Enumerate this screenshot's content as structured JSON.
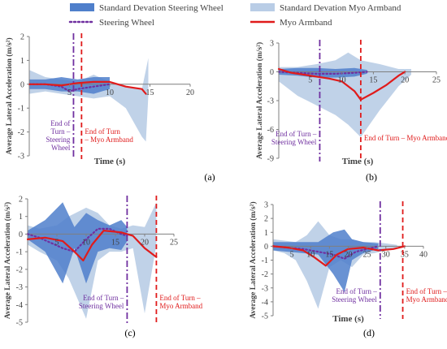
{
  "legend": {
    "items": [
      {
        "label": "Standard Devation Steering Wheel",
        "kind": "area",
        "color": "#4f7fcb"
      },
      {
        "label": "Standard Devation Myo Armband",
        "kind": "area",
        "color": "#b9cde6"
      },
      {
        "label": "Steering Wheel",
        "kind": "dotted-line",
        "color": "#7030a0"
      },
      {
        "label": "Myo Armband",
        "kind": "line",
        "color": "#e01b1b"
      }
    ]
  },
  "colors": {
    "sd_steering": "#4f7fcb",
    "sd_myo": "#b9cde6",
    "steering": "#7030a0",
    "myo": "#e01b1b",
    "axis": "#7f7f7f",
    "text": "#404040"
  },
  "chart_data": [
    {
      "type": "line",
      "panel_label": "(a)",
      "xlabel": "Time (s)",
      "ylabel": "Average Lateral Acceleration (m/s²)",
      "xlim": [
        0,
        20
      ],
      "ylim": [
        -3,
        2
      ],
      "xticks": [
        5,
        10,
        15,
        20
      ],
      "yticks": [
        2,
        1,
        0,
        -1,
        -2,
        -3
      ],
      "xtick_labels": [
        "5",
        "10",
        "15",
        "20"
      ],
      "ytick_labels": [
        "2",
        "1",
        "0",
        "-1",
        "-2",
        "-3"
      ],
      "series": [
        {
          "name": "Standard Devation Myo Armband",
          "kind": "band",
          "x": [
            0,
            2,
            4,
            6,
            8,
            10,
            12,
            14,
            14.5,
            14.8
          ],
          "upper": [
            0.6,
            0.3,
            0.2,
            0.1,
            0.4,
            0.1,
            -0.1,
            -0.2,
            0.6,
            1.1
          ],
          "lower": [
            -0.4,
            -0.3,
            -0.4,
            -0.5,
            -0.6,
            -0.5,
            -1.0,
            -2.2,
            -2.4,
            -0.5
          ]
        },
        {
          "name": "Standard Devation Steering Wheel",
          "kind": "band",
          "x": [
            0,
            2,
            4,
            6,
            8,
            10
          ],
          "upper": [
            0.2,
            0.2,
            0.3,
            0.2,
            0.3,
            0.3
          ],
          "lower": [
            -0.2,
            -0.2,
            -0.3,
            -0.3,
            -0.4,
            -0.2
          ]
        },
        {
          "name": "Steering Wheel",
          "kind": "dotted",
          "x": [
            0,
            2,
            4,
            5,
            6,
            8,
            10
          ],
          "y": [
            0.0,
            0.0,
            -0.1,
            -0.3,
            -0.2,
            -0.1,
            0.0
          ]
        },
        {
          "name": "Myo Armband",
          "kind": "line",
          "x": [
            0,
            2,
            4,
            6,
            8,
            10,
            12,
            14,
            14.5
          ],
          "y": [
            0.0,
            0.0,
            -0.05,
            0.05,
            0.1,
            0.1,
            -0.1,
            -0.2,
            -0.4
          ]
        }
      ],
      "markers": [
        {
          "x": 5.5,
          "color": "#7030a0",
          "style": "dashdot",
          "label": "End of Turn – Steering Wheel",
          "side": "left"
        },
        {
          "x": 6.5,
          "color": "#e01b1b",
          "style": "dashed",
          "label": "End of Turn – Myo Armband",
          "side": "right"
        }
      ]
    },
    {
      "type": "line",
      "panel_label": "(b)",
      "xlabel": "Time (s)",
      "ylabel": "Average Lateral Acceleration (m/s²)",
      "xlim": [
        0,
        25
      ],
      "ylim": [
        -9,
        3
      ],
      "xticks": [
        5,
        10,
        15,
        20,
        25
      ],
      "yticks": [
        3,
        0,
        -3,
        -6,
        -9
      ],
      "xtick_labels": [
        "5",
        "10",
        "15",
        "20",
        "25"
      ],
      "ytick_labels": [
        "3",
        "0",
        "-3",
        "-6",
        "-9"
      ],
      "series": [
        {
          "name": "Standard Devation Myo Armband",
          "kind": "band",
          "x": [
            0,
            3,
            6,
            9,
            11,
            13,
            16,
            19,
            21
          ],
          "upper": [
            0.5,
            0.5,
            0.8,
            1.2,
            2.0,
            1.2,
            0.8,
            0.3,
            0.3
          ],
          "lower": [
            -1.0,
            -2.5,
            -3.5,
            -4.5,
            -5.5,
            -6.8,
            -4.0,
            -1.5,
            -0.3
          ]
        },
        {
          "name": "Standard Devation Steering Wheel",
          "kind": "band",
          "x": [
            0,
            3,
            6,
            9,
            12,
            14
          ],
          "upper": [
            0.3,
            0.4,
            0.4,
            0.3,
            0.4,
            0.2
          ],
          "lower": [
            -0.3,
            -0.4,
            -0.6,
            -0.6,
            -0.5,
            -0.2
          ]
        },
        {
          "name": "Steering Wheel",
          "kind": "dotted",
          "x": [
            0,
            3,
            6,
            9,
            12,
            14
          ],
          "y": [
            0.0,
            -0.1,
            -0.2,
            -0.2,
            -0.1,
            0.0
          ]
        },
        {
          "name": "Myo Armband",
          "kind": "line",
          "x": [
            0,
            2,
            4,
            6,
            8,
            10,
            12,
            13,
            15,
            17,
            19,
            20
          ],
          "y": [
            0.3,
            -0.1,
            -0.3,
            -0.5,
            -0.7,
            -1.0,
            -2.0,
            -2.9,
            -2.2,
            -1.4,
            -0.4,
            0.0
          ]
        }
      ],
      "markers": [
        {
          "x": 6.5,
          "color": "#7030a0",
          "style": "dashdot",
          "label": "End of Turn – Steering Wheel",
          "side": "left"
        },
        {
          "x": 13.0,
          "color": "#e01b1b",
          "style": "dashed",
          "label": "End of Turn – Myo Armband",
          "side": "right"
        }
      ]
    },
    {
      "type": "line",
      "panel_label": "(c)",
      "xlabel": "",
      "ylabel": "Average Lateral Acceleration (m/s²)",
      "xlim": [
        0,
        25
      ],
      "ylim": [
        -5,
        2
      ],
      "xticks": [
        5,
        10,
        15,
        20,
        25
      ],
      "yticks": [
        2,
        1,
        0,
        -1,
        -2,
        -3,
        -4,
        -5
      ],
      "xtick_labels": [
        "5",
        "10",
        "15",
        "20",
        "25"
      ],
      "ytick_labels": [
        "2",
        "1",
        "0",
        "-1",
        "-2",
        "-3",
        "-4",
        "-5"
      ],
      "series": [
        {
          "name": "Standard Devation Myo Armband",
          "kind": "band",
          "x": [
            0,
            2,
            5,
            7,
            10,
            12,
            14,
            16,
            18,
            20,
            22
          ],
          "upper": [
            0.5,
            0.3,
            0.5,
            1.0,
            1.5,
            1.2,
            0.5,
            0.3,
            0.5,
            0.4,
            1.8
          ],
          "lower": [
            -0.6,
            -1.0,
            -1.5,
            -2.5,
            -4.8,
            -1.5,
            -1.0,
            -1.0,
            -0.8,
            -4.5,
            -0.6
          ]
        },
        {
          "name": "Standard Devation Steering Wheel",
          "kind": "band",
          "x": [
            0,
            3,
            6,
            8,
            10,
            12,
            14,
            16,
            17
          ],
          "upper": [
            0.2,
            0.8,
            1.8,
            0.4,
            1.2,
            0.8,
            0.5,
            0.8,
            0.4
          ],
          "lower": [
            -0.3,
            -1.0,
            -2.8,
            -0.8,
            -2.8,
            -1.0,
            -0.8,
            -0.9,
            -0.4
          ]
        },
        {
          "name": "Steering Wheel",
          "kind": "dotted",
          "x": [
            0,
            2,
            4,
            6,
            8,
            10,
            12,
            14,
            16,
            17
          ],
          "y": [
            0.0,
            -0.2,
            -0.5,
            -0.8,
            -1.0,
            -0.3,
            0.3,
            0.3,
            0.0,
            -0.1
          ]
        },
        {
          "name": "Myo Armband",
          "kind": "line",
          "x": [
            0,
            3,
            6,
            8,
            9.5,
            11,
            13,
            16,
            18,
            20,
            22
          ],
          "y": [
            -0.3,
            -0.2,
            -0.4,
            -1.0,
            -1.5,
            -0.6,
            0.2,
            0.1,
            -0.1,
            -0.8,
            -1.3
          ]
        }
      ],
      "markers": [
        {
          "x": 17.0,
          "color": "#7030a0",
          "style": "dashdot",
          "label": "End of Turn – Steering Wheel",
          "side": "left"
        },
        {
          "x": 22.0,
          "color": "#e01b1b",
          "style": "dashed",
          "label": "End of Turn – Myo Armband",
          "side": "right"
        }
      ]
    },
    {
      "type": "line",
      "panel_label": "(d)",
      "xlabel": "Time (s)",
      "ylabel": "Average Lateral Acceleration (m/s²)",
      "xlim": [
        0,
        40
      ],
      "ylim": [
        -5,
        3
      ],
      "xticks": [
        5,
        10,
        15,
        20,
        25,
        30,
        35,
        40
      ],
      "yticks": [
        3,
        2,
        1,
        0,
        -1,
        -2,
        -3,
        -4,
        -5
      ],
      "xtick_labels": [
        "5",
        "10",
        "15",
        "20",
        "25",
        "30",
        "35",
        "40"
      ],
      "ytick_labels": [
        "3",
        "2",
        "1",
        "0",
        "-1",
        "-2",
        "-3",
        "-4",
        "-5"
      ],
      "series": [
        {
          "name": "Standard Devation Myo Armband",
          "kind": "band",
          "x": [
            0,
            3,
            6,
            9,
            12,
            15,
            18,
            21,
            24,
            27,
            30,
            33
          ],
          "upper": [
            0.5,
            0.4,
            0.3,
            0.8,
            1.8,
            0.8,
            0.5,
            0.5,
            0.3,
            0.3,
            0.2,
            0.1
          ],
          "lower": [
            -0.3,
            -0.5,
            -1.0,
            -2.5,
            -4.5,
            -1.5,
            -1.0,
            -1.5,
            -0.6,
            -0.5,
            -0.3,
            -0.2
          ]
        },
        {
          "name": "Standard Devation Steering Wheel",
          "kind": "band",
          "x": [
            0,
            4,
            8,
            12,
            16,
            19,
            21,
            24,
            28
          ],
          "upper": [
            0.3,
            0.3,
            0.3,
            0.3,
            1.0,
            1.2,
            0.5,
            0.3,
            0.2
          ],
          "lower": [
            -0.3,
            -0.4,
            -0.5,
            -0.6,
            -2.0,
            -3.3,
            -1.0,
            -0.5,
            -0.2
          ]
        },
        {
          "name": "Steering Wheel",
          "kind": "dotted",
          "x": [
            0,
            4,
            8,
            12,
            16,
            19,
            22,
            25,
            28
          ],
          "y": [
            0.0,
            -0.1,
            -0.2,
            -0.4,
            -0.6,
            -0.9,
            -0.4,
            -0.2,
            0.0
          ]
        },
        {
          "name": "Myo Armband",
          "kind": "line",
          "x": [
            0,
            4,
            8,
            11,
            14,
            17,
            20,
            24,
            28,
            32,
            35
          ],
          "y": [
            0.0,
            -0.1,
            -0.3,
            -0.8,
            -1.4,
            -0.6,
            -0.2,
            -0.1,
            -0.3,
            -0.2,
            0.0
          ]
        }
      ],
      "markers": [
        {
          "x": 28.5,
          "color": "#7030a0",
          "style": "dashdot",
          "label": "End of Turn – Steering Wheel",
          "side": "left"
        },
        {
          "x": 34.5,
          "color": "#e01b1b",
          "style": "dashed",
          "label": "End of Turn – Myo Armband",
          "side": "right"
        }
      ]
    }
  ]
}
